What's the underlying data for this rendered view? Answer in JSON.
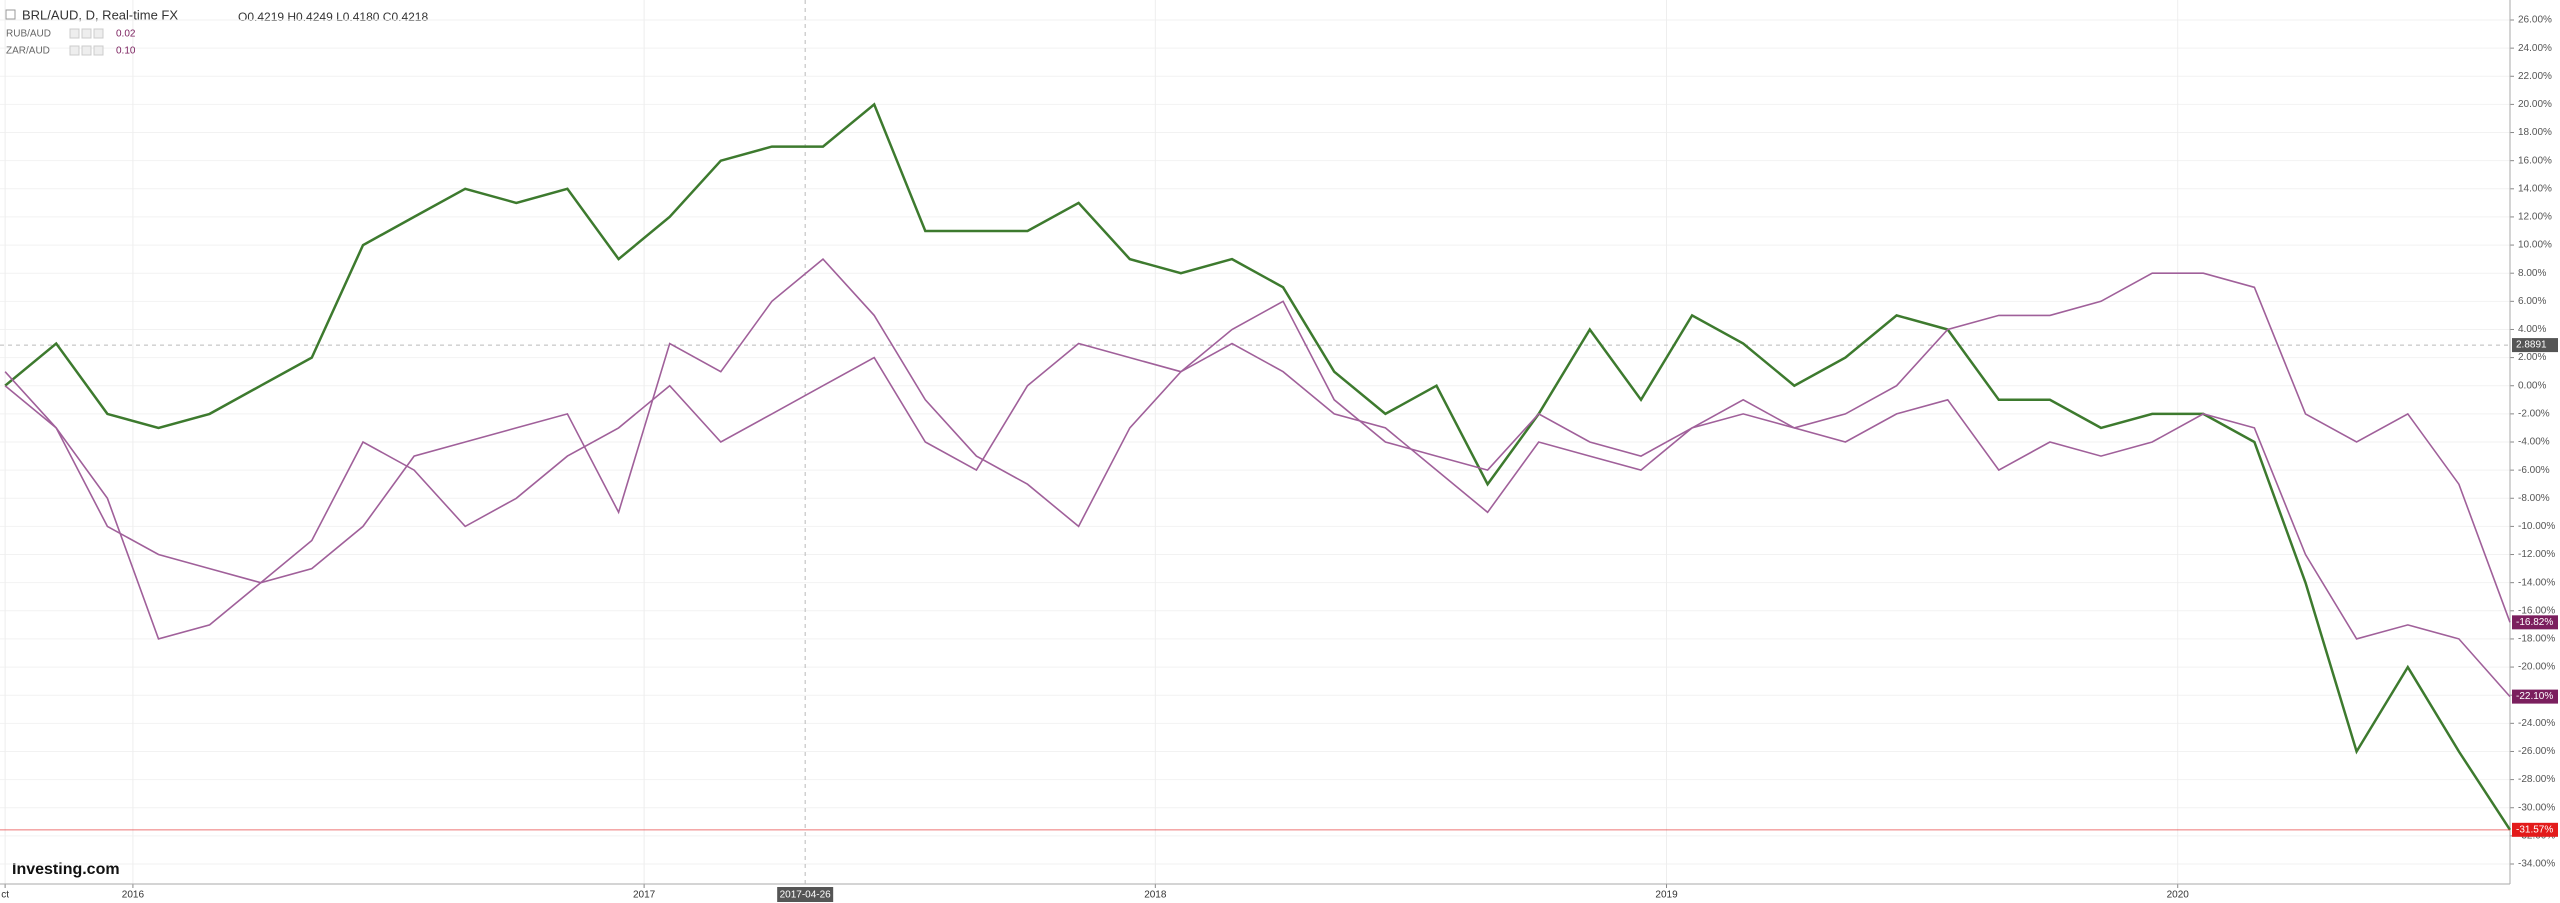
{
  "chart_data": {
    "type": "line",
    "title": "BRL/AUD, D, Real-time FX",
    "subtitle": "O0.4219 H0.4249 L0.4180 C0.4218",
    "brand": "Investing.com",
    "crosshair_x_label": "2017-04-26",
    "crosshair_y": 2.8891,
    "x": [
      2015.75,
      2015.85,
      2015.95,
      2016.05,
      2016.15,
      2016.25,
      2016.35,
      2016.45,
      2016.55,
      2016.65,
      2016.75,
      2016.85,
      2016.95,
      2017.05,
      2017.15,
      2017.25,
      2017.35,
      2017.45,
      2017.55,
      2017.65,
      2017.75,
      2017.85,
      2017.95,
      2018.05,
      2018.15,
      2018.25,
      2018.35,
      2018.45,
      2018.55,
      2018.65,
      2018.75,
      2018.85,
      2018.95,
      2019.05,
      2019.15,
      2019.25,
      2019.35,
      2019.45,
      2019.55,
      2019.65,
      2019.75,
      2019.85,
      2019.95,
      2020.05,
      2020.15,
      2020.25,
      2020.35,
      2020.45,
      2020.55,
      2020.65
    ],
    "series": [
      {
        "name": "BRL/AUD",
        "color": "#3d7a2e",
        "label_color": "#e31b1b",
        "values": [
          0,
          3,
          -2,
          -3,
          -2,
          0,
          2,
          10,
          12,
          14,
          13,
          14,
          9,
          12,
          16,
          17,
          17,
          20,
          11,
          11,
          11,
          13,
          9,
          8,
          9,
          7,
          1,
          -2,
          0,
          -7,
          -2,
          4,
          -1,
          5,
          3,
          0,
          2,
          5,
          4,
          -1,
          -1,
          -3,
          -2,
          -2,
          -4,
          -14,
          -26,
          -20,
          -26,
          -31.57
        ],
        "value_labels": [
          null,
          null,
          null,
          null,
          null,
          null,
          null,
          null,
          null,
          null,
          null,
          null,
          null,
          null,
          null,
          null,
          null,
          null,
          null,
          null,
          null,
          null,
          null,
          null,
          null,
          null,
          null,
          null,
          null,
          null,
          null,
          null,
          null,
          null,
          null,
          null,
          null,
          null,
          null,
          null,
          null,
          null,
          null,
          null,
          null,
          null,
          null,
          null,
          null,
          "-31.57%"
        ]
      },
      {
        "name": "RUB/AUD",
        "color": "#a0609a",
        "label_color": "#7b1f5e",
        "legend_value": "0.02",
        "values": [
          0,
          -3,
          -10,
          -12,
          -13,
          -14,
          -11,
          -4,
          -6,
          -10,
          -8,
          -5,
          -3,
          0,
          -4,
          -2,
          0,
          2,
          -4,
          -6,
          0,
          3,
          2,
          1,
          4,
          6,
          -1,
          -4,
          -5,
          -6,
          -2,
          -4,
          -5,
          -3,
          -1,
          -3,
          -4,
          -2,
          -1,
          -6,
          -4,
          -5,
          -4,
          -2,
          -3,
          -12,
          -18,
          -17,
          -18,
          -22.1
        ],
        "value_labels": [
          null,
          null,
          null,
          null,
          null,
          null,
          null,
          null,
          null,
          null,
          null,
          null,
          null,
          null,
          null,
          null,
          null,
          null,
          null,
          null,
          null,
          null,
          null,
          null,
          null,
          null,
          null,
          null,
          null,
          null,
          null,
          null,
          null,
          null,
          null,
          null,
          null,
          null,
          null,
          null,
          null,
          null,
          null,
          null,
          null,
          null,
          null,
          null,
          null,
          "-22.10%"
        ]
      },
      {
        "name": "ZAR/AUD",
        "color": "#a0609a",
        "label_color": "#7b1f5e",
        "legend_value": "0.10",
        "values": [
          1,
          -3,
          -8,
          -18,
          -17,
          -14,
          -13,
          -10,
          -5,
          -4,
          -3,
          -2,
          -9,
          3,
          1,
          6,
          9,
          5,
          -1,
          -5,
          -7,
          -10,
          -3,
          1,
          3,
          1,
          -2,
          -3,
          -6,
          -9,
          -4,
          -5,
          -6,
          -3,
          -2,
          -3,
          -2,
          0,
          4,
          5,
          5,
          6,
          8,
          8,
          7,
          -2,
          -4,
          -2,
          -7,
          -16.82
        ],
        "value_labels": [
          null,
          null,
          null,
          null,
          null,
          null,
          null,
          null,
          null,
          null,
          null,
          null,
          null,
          null,
          null,
          null,
          null,
          null,
          null,
          null,
          null,
          null,
          null,
          null,
          null,
          null,
          null,
          null,
          null,
          null,
          null,
          null,
          null,
          null,
          null,
          null,
          null,
          null,
          null,
          null,
          null,
          null,
          null,
          null,
          null,
          null,
          null,
          null,
          null,
          "-16.82%"
        ]
      }
    ],
    "xlim": [
      2015.74,
      2020.65
    ],
    "xticks": [
      {
        "value": 2015.75,
        "label": "ct"
      },
      2016,
      2017,
      2018,
      2019,
      2020
    ],
    "ylim": [
      -34,
      26
    ],
    "yticks": [
      {
        "value": 26,
        "label": "26.00%"
      },
      {
        "value": 24,
        "label": "24.00%"
      },
      {
        "value": 22,
        "label": "22.00%"
      },
      {
        "value": 20,
        "label": "20.00%"
      },
      {
        "value": 18,
        "label": "18.00%"
      },
      {
        "value": 16,
        "label": "16.00%"
      },
      {
        "value": 14,
        "label": "14.00%"
      },
      {
        "value": 12,
        "label": "12.00%"
      },
      {
        "value": 10,
        "label": "10.00%"
      },
      {
        "value": 8,
        "label": "8.00%"
      },
      {
        "value": 6,
        "label": "6.00%"
      },
      {
        "value": 4,
        "label": "4.00%"
      },
      {
        "value": 2,
        "label": "2.00%"
      },
      {
        "value": 0,
        "label": "0.00%"
      },
      {
        "value": -2,
        "label": "-2.00%"
      },
      {
        "value": -4,
        "label": "-4.00%"
      },
      {
        "value": -6,
        "label": "-6.00%"
      },
      {
        "value": -8,
        "label": "-8.00%"
      },
      {
        "value": -10,
        "label": "-10.00%"
      },
      {
        "value": -12,
        "label": "-12.00%"
      },
      {
        "value": -14,
        "label": "-14.00%"
      },
      {
        "value": -16,
        "label": "-16.00%"
      },
      {
        "value": -18,
        "label": "-18.00%"
      },
      {
        "value": -20,
        "label": "-20.00%"
      },
      {
        "value": -22,
        "label": "-22.00%"
      },
      {
        "value": -24,
        "label": "-24.00%"
      },
      {
        "value": -26,
        "label": "-26.00%"
      },
      {
        "value": -28,
        "label": "-28.00%"
      },
      {
        "value": -30,
        "label": "-30.00%"
      },
      {
        "value": -32,
        "label": "-32.00%"
      },
      {
        "value": -34,
        "label": "-34.00%"
      }
    ],
    "grid": true
  }
}
